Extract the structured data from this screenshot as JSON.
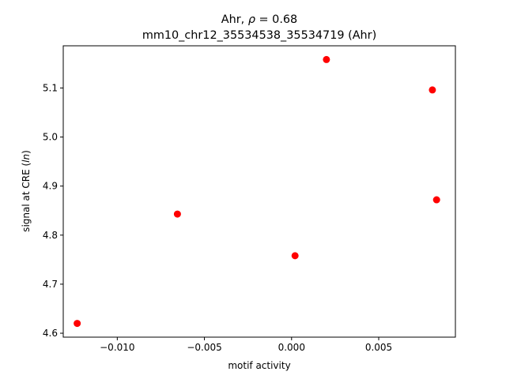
{
  "chart_data": {
    "type": "scatter",
    "title_line1_prefix": "Ahr, ",
    "title_line1_rho": "ρ",
    "title_line1_suffix": " = 0.68",
    "title_line2": "mm10_chr12_35534538_35534719 (Ahr)",
    "xlabel": "motif activity",
    "ylabel_prefix": "signal at CRE (",
    "ylabel_italic": "ln",
    "ylabel_suffix": ")",
    "xlim": [
      -0.0131,
      0.0094
    ],
    "ylim": [
      4.592,
      5.186
    ],
    "xticks": [
      -0.01,
      -0.005,
      0.0,
      0.005
    ],
    "xtick_labels": [
      "−0.010",
      "−0.005",
      "0.000",
      "0.005"
    ],
    "yticks": [
      4.6,
      4.7,
      4.8,
      4.9,
      5.0,
      5.1
    ],
    "ytick_labels": [
      "4.6",
      "4.7",
      "4.8",
      "4.9",
      "5.0",
      "5.1"
    ],
    "marker_color": "#ff0000",
    "points": [
      {
        "x": -0.0123,
        "y": 4.62
      },
      {
        "x": -0.00655,
        "y": 4.843
      },
      {
        "x": 0.0002,
        "y": 4.758
      },
      {
        "x": 0.002,
        "y": 5.158
      },
      {
        "x": 0.00808,
        "y": 5.096
      },
      {
        "x": 0.00832,
        "y": 4.872
      }
    ]
  }
}
